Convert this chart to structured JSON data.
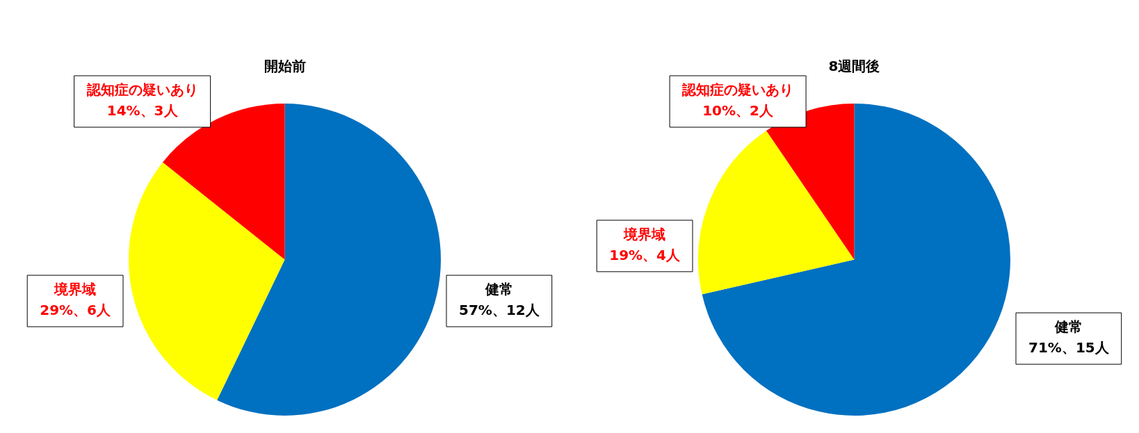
{
  "chart_data": [
    {
      "type": "pie",
      "title": "開始前",
      "categories": [
        "健常",
        "境界域",
        "認知症の疑いあり"
      ],
      "values": [
        12,
        6,
        3
      ],
      "colors": [
        "#0070c0",
        "#ffff00",
        "#ff0000"
      ],
      "value_labels": [
        "57%、12人",
        "29%、6人",
        "14%、3人"
      ],
      "legend": false
    },
    {
      "type": "pie",
      "title": "8週間後",
      "categories": [
        "健常",
        "境界域",
        "認知症の疑いあり"
      ],
      "values": [
        15,
        4,
        2
      ],
      "colors": [
        "#0070c0",
        "#ffff00",
        "#ff0000"
      ],
      "value_labels": [
        "71%、15人",
        "19%、4人",
        "10%、2人"
      ],
      "legend": false
    }
  ]
}
